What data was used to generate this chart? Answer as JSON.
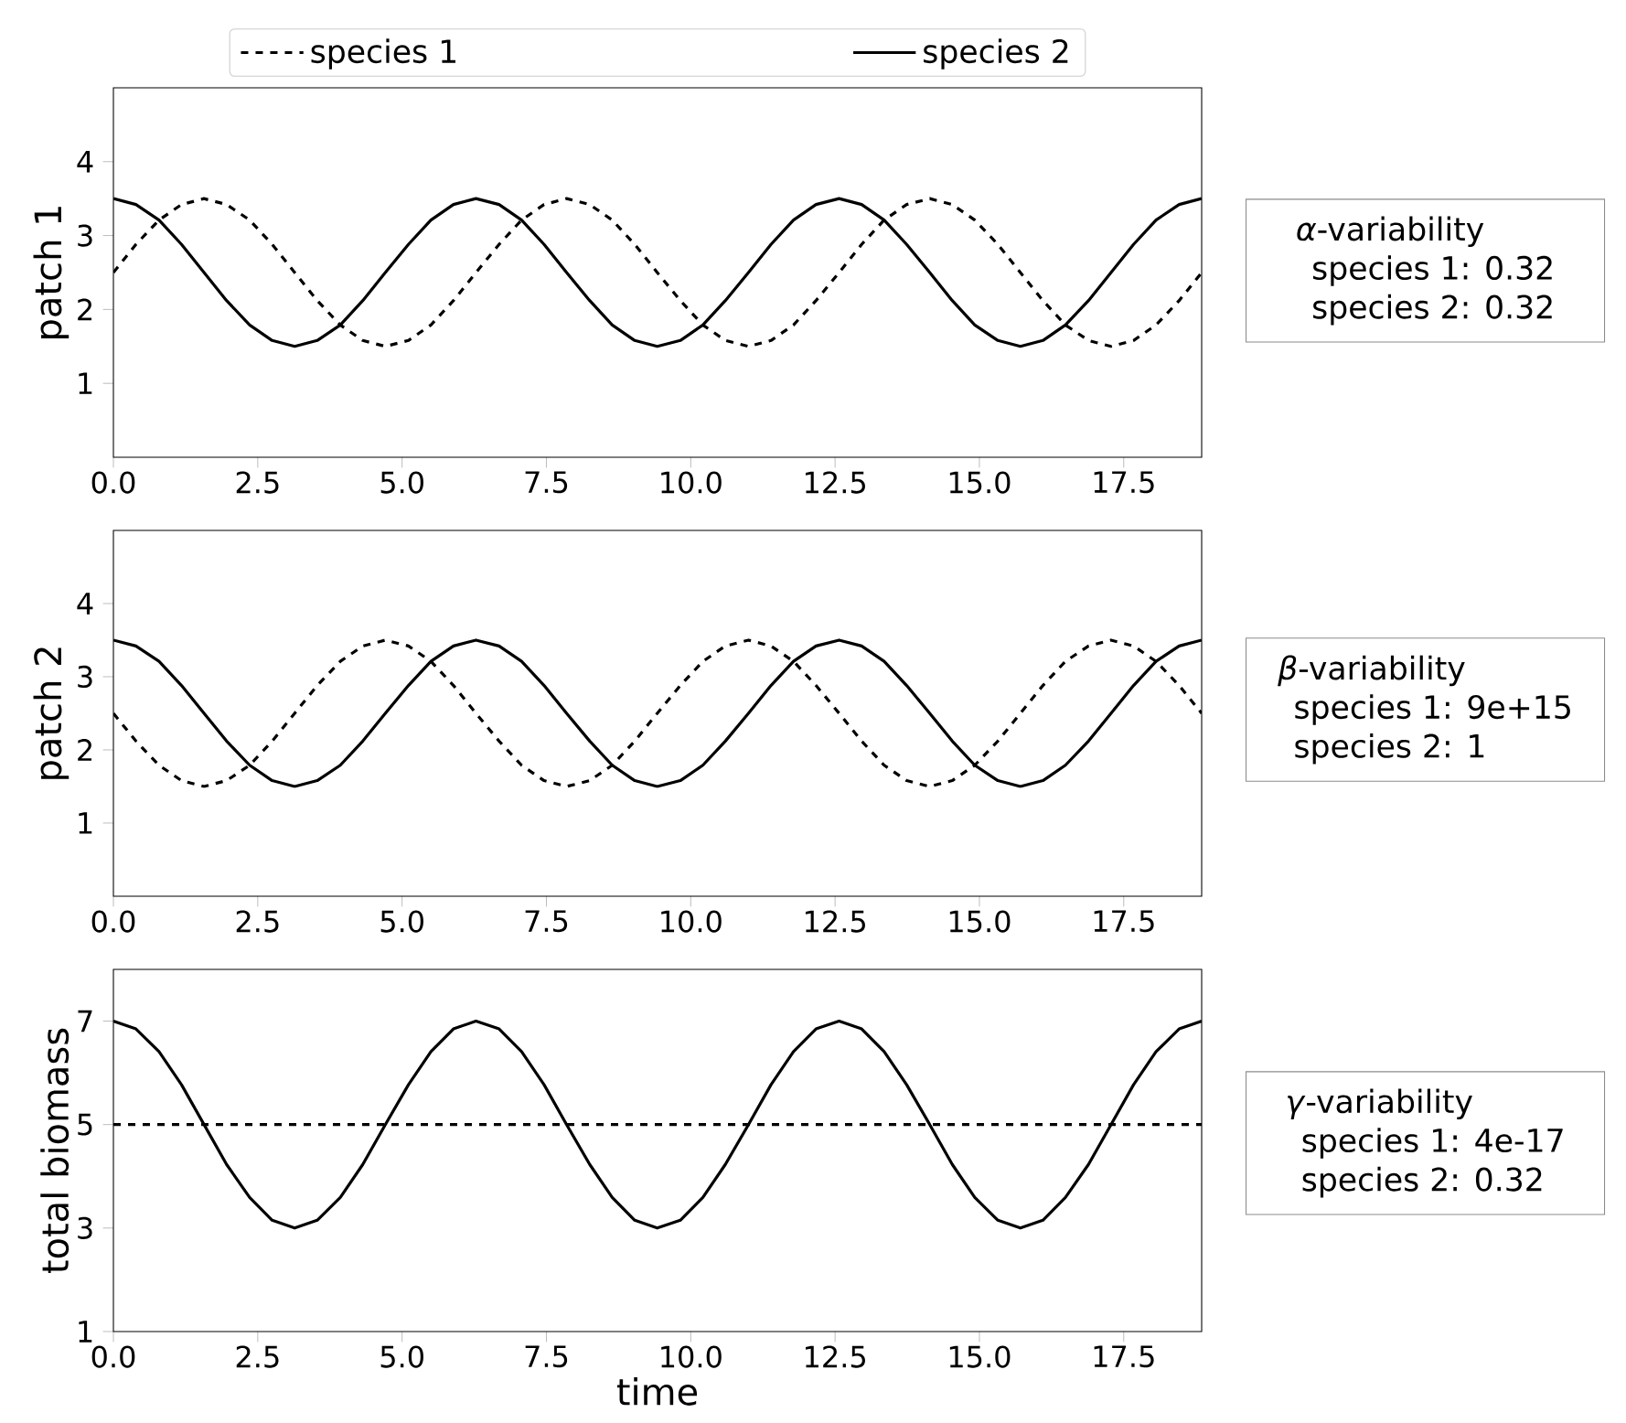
{
  "chart_data": [
    {
      "type": "line",
      "ylabel": "patch 1",
      "legend": "top",
      "xlim": [
        0,
        18.85
      ],
      "ylim": [
        0,
        5
      ],
      "xticks": [
        {
          "value": 0,
          "label": "0.0"
        },
        {
          "value": 2.5,
          "label": "2.5"
        },
        {
          "value": 5,
          "label": "5.0"
        },
        {
          "value": 7.5,
          "label": "7.5"
        },
        {
          "value": 10,
          "label": "10.0"
        },
        {
          "value": 12.5,
          "label": "12.5"
        },
        {
          "value": 15,
          "label": "15.0"
        },
        {
          "value": 17.5,
          "label": "17.5"
        }
      ],
      "yticks": [
        1,
        2,
        3,
        4
      ],
      "x": [
        0,
        0.39,
        0.79,
        1.18,
        1.57,
        1.96,
        2.36,
        2.75,
        3.14,
        3.53,
        3.93,
        4.32,
        4.71,
        5.11,
        5.5,
        5.89,
        6.28,
        6.68,
        7.07,
        7.46,
        7.85,
        8.25,
        8.64,
        9.03,
        9.42,
        9.82,
        10.21,
        10.6,
        11.0,
        11.39,
        11.78,
        12.17,
        12.57,
        12.96,
        13.35,
        13.74,
        14.14,
        14.53,
        14.92,
        15.32,
        15.71,
        16.1,
        16.49,
        16.89,
        17.28,
        17.67,
        18.06,
        18.46,
        18.85
      ],
      "series": [
        {
          "name": "species 1",
          "color": "#000000",
          "line_style": "dashed",
          "values": [
            2.5,
            2.88,
            3.21,
            3.42,
            3.5,
            3.42,
            3.21,
            2.88,
            2.5,
            2.12,
            1.79,
            1.58,
            1.5,
            1.58,
            1.79,
            2.12,
            2.5,
            2.88,
            3.21,
            3.42,
            3.5,
            3.42,
            3.21,
            2.88,
            2.5,
            2.12,
            1.79,
            1.58,
            1.5,
            1.58,
            1.79,
            2.12,
            2.5,
            2.88,
            3.21,
            3.42,
            3.5,
            3.42,
            3.21,
            2.88,
            2.5,
            2.12,
            1.79,
            1.58,
            1.5,
            1.58,
            1.79,
            2.12,
            2.5
          ]
        },
        {
          "name": "species 2",
          "color": "#000000",
          "line_style": "solid",
          "values": [
            3.5,
            3.42,
            3.21,
            2.88,
            2.5,
            2.12,
            1.79,
            1.58,
            1.5,
            1.58,
            1.79,
            2.12,
            2.5,
            2.88,
            3.21,
            3.42,
            3.5,
            3.42,
            3.21,
            2.88,
            2.5,
            2.12,
            1.79,
            1.58,
            1.5,
            1.58,
            1.79,
            2.12,
            2.5,
            2.88,
            3.21,
            3.42,
            3.5,
            3.42,
            3.21,
            2.88,
            2.5,
            2.12,
            1.79,
            1.58,
            1.5,
            1.58,
            1.79,
            2.12,
            2.5,
            2.88,
            3.21,
            3.42,
            3.5
          ]
        }
      ],
      "annotations": [
        "*α*-variability",
        "species 1: 0.32",
        "species 2: 0.32"
      ]
    },
    {
      "type": "line",
      "ylabel": "patch 2",
      "xlim": [
        0,
        18.85
      ],
      "ylim": [
        0,
        5
      ],
      "xticks": [
        {
          "value": 0,
          "label": "0.0"
        },
        {
          "value": 2.5,
          "label": "2.5"
        },
        {
          "value": 5,
          "label": "5.0"
        },
        {
          "value": 7.5,
          "label": "7.5"
        },
        {
          "value": 10,
          "label": "10.0"
        },
        {
          "value": 12.5,
          "label": "12.5"
        },
        {
          "value": 15,
          "label": "15.0"
        },
        {
          "value": 17.5,
          "label": "17.5"
        }
      ],
      "yticks": [
        1,
        2,
        3,
        4
      ],
      "x": [
        0,
        0.39,
        0.79,
        1.18,
        1.57,
        1.96,
        2.36,
        2.75,
        3.14,
        3.53,
        3.93,
        4.32,
        4.71,
        5.11,
        5.5,
        5.89,
        6.28,
        6.68,
        7.07,
        7.46,
        7.85,
        8.25,
        8.64,
        9.03,
        9.42,
        9.82,
        10.21,
        10.6,
        11.0,
        11.39,
        11.78,
        12.17,
        12.57,
        12.96,
        13.35,
        13.74,
        14.14,
        14.53,
        14.92,
        15.32,
        15.71,
        16.1,
        16.49,
        16.89,
        17.28,
        17.67,
        18.06,
        18.46,
        18.85
      ],
      "series": [
        {
          "color": "#000000",
          "line_style": "dashed",
          "values": [
            2.5,
            2.12,
            1.79,
            1.58,
            1.5,
            1.58,
            1.79,
            2.12,
            2.5,
            2.88,
            3.21,
            3.42,
            3.5,
            3.42,
            3.21,
            2.88,
            2.5,
            2.12,
            1.79,
            1.58,
            1.5,
            1.58,
            1.79,
            2.12,
            2.5,
            2.88,
            3.21,
            3.42,
            3.5,
            3.42,
            3.21,
            2.88,
            2.5,
            2.12,
            1.79,
            1.58,
            1.5,
            1.58,
            1.79,
            2.12,
            2.5,
            2.88,
            3.21,
            3.42,
            3.5,
            3.42,
            3.21,
            2.88,
            2.5
          ]
        },
        {
          "color": "#000000",
          "line_style": "solid",
          "values": [
            3.5,
            3.42,
            3.21,
            2.88,
            2.5,
            2.12,
            1.79,
            1.58,
            1.5,
            1.58,
            1.79,
            2.12,
            2.5,
            2.88,
            3.21,
            3.42,
            3.5,
            3.42,
            3.21,
            2.88,
            2.5,
            2.12,
            1.79,
            1.58,
            1.5,
            1.58,
            1.79,
            2.12,
            2.5,
            2.88,
            3.21,
            3.42,
            3.5,
            3.42,
            3.21,
            2.88,
            2.5,
            2.12,
            1.79,
            1.58,
            1.5,
            1.58,
            1.79,
            2.12,
            2.5,
            2.88,
            3.21,
            3.42,
            3.5
          ]
        }
      ],
      "annotations": [
        "*β*-variability",
        "species 1: 9e+15",
        "species 2: 1"
      ]
    },
    {
      "type": "line",
      "ylabel": "total biomass",
      "xlabel": "time",
      "xlim": [
        0,
        18.85
      ],
      "ylim": [
        1,
        8
      ],
      "xticks": [
        {
          "value": 0,
          "label": "0.0"
        },
        {
          "value": 2.5,
          "label": "2.5"
        },
        {
          "value": 5,
          "label": "5.0"
        },
        {
          "value": 7.5,
          "label": "7.5"
        },
        {
          "value": 10,
          "label": "10.0"
        },
        {
          "value": 12.5,
          "label": "12.5"
        },
        {
          "value": 15,
          "label": "15.0"
        },
        {
          "value": 17.5,
          "label": "17.5"
        }
      ],
      "yticks": [
        1,
        3,
        5,
        7
      ],
      "x": [
        0,
        0.39,
        0.79,
        1.18,
        1.57,
        1.96,
        2.36,
        2.75,
        3.14,
        3.53,
        3.93,
        4.32,
        4.71,
        5.11,
        5.5,
        5.89,
        6.28,
        6.68,
        7.07,
        7.46,
        7.85,
        8.25,
        8.64,
        9.03,
        9.42,
        9.82,
        10.21,
        10.6,
        11.0,
        11.39,
        11.78,
        12.17,
        12.57,
        12.96,
        13.35,
        13.74,
        14.14,
        14.53,
        14.92,
        15.32,
        15.71,
        16.1,
        16.49,
        16.89,
        17.28,
        17.67,
        18.06,
        18.46,
        18.85
      ],
      "series": [
        {
          "color": "#000000",
          "line_style": "dashed",
          "x": [
            0,
            18.85
          ],
          "values": [
            5,
            5
          ]
        },
        {
          "color": "#000000",
          "line_style": "solid",
          "values": [
            7,
            6.85,
            6.41,
            5.77,
            5,
            4.23,
            3.59,
            3.15,
            3,
            3.15,
            3.59,
            4.23,
            5,
            5.77,
            6.41,
            6.85,
            7,
            6.85,
            6.41,
            5.77,
            5,
            4.23,
            3.59,
            3.15,
            3,
            3.15,
            3.59,
            4.23,
            5,
            5.77,
            6.41,
            6.85,
            7,
            6.85,
            6.41,
            5.77,
            5,
            4.23,
            3.59,
            3.15,
            3,
            3.15,
            3.59,
            4.23,
            5,
            5.77,
            6.41,
            6.85,
            7
          ]
        }
      ],
      "annotations": [
        "*γ*-variability",
        "species 1: 4e-17",
        "species 2: 0.32"
      ]
    }
  ]
}
